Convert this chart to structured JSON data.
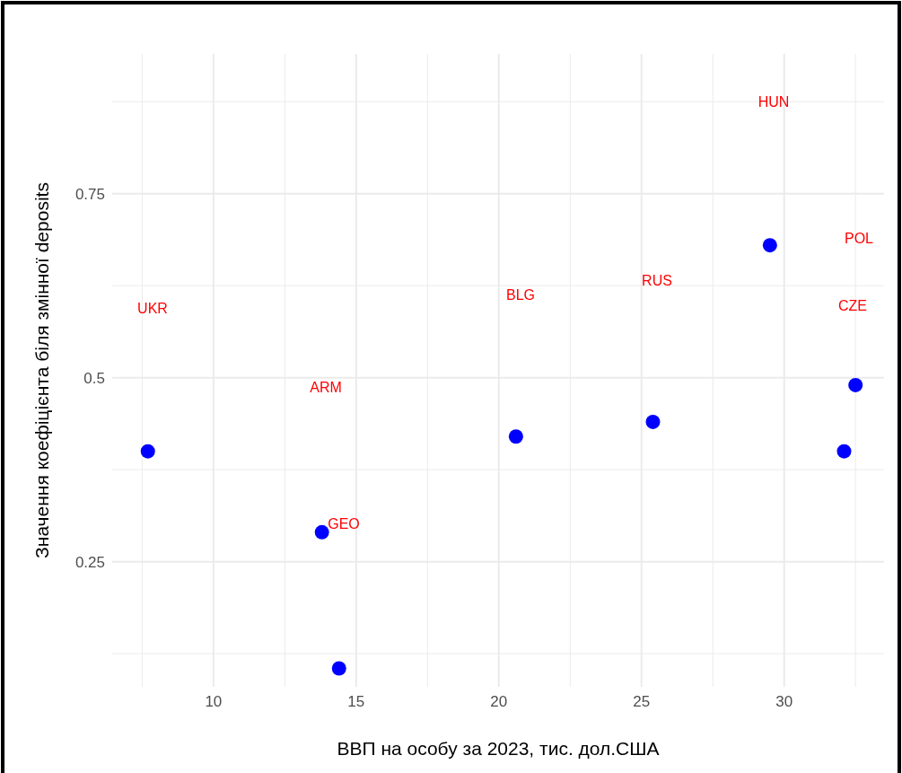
{
  "chart_data": {
    "type": "scatter",
    "xlabel": "ВВП на особу за 2023, тис. дол.США",
    "ylabel": "Значення коефіцієнта біля змінної deposits",
    "x": [
      7.7,
      13.8,
      14.4,
      20.6,
      25.4,
      29.5,
      32.5,
      32.1
    ],
    "series": [
      {
        "color": "#0000ff",
        "values": [
          0.4,
          0.29,
          0.105,
          0.42,
          0.44,
          0.68,
          0.49,
          0.4
        ]
      }
    ],
    "xlim": [
      6.45,
      33.5
    ],
    "ylim": [
      0.08,
      0.94
    ],
    "xticks": [
      {
        "value": 7.5,
        "label": null
      },
      10,
      {
        "value": 12.5,
        "label": null
      },
      15,
      {
        "value": 17.5,
        "label": null
      },
      20,
      {
        "value": 22.5,
        "label": null
      },
      25,
      {
        "value": 27.5,
        "label": null
      },
      30,
      {
        "value": 32.5,
        "label": null
      }
    ],
    "yticks": [
      {
        "value": 0.125,
        "label": null
      },
      0.25,
      {
        "value": 0.375,
        "label": null
      },
      0.5,
      {
        "value": 0.625,
        "label": null
      },
      0.75,
      {
        "value": 0.875,
        "label": null
      }
    ],
    "grid": true,
    "marker": "circle",
    "annotations": [
      "UKR",
      "ARM",
      "GEO",
      "BLG",
      "RUS",
      "HUN",
      "POL",
      "CZE"
    ]
  }
}
